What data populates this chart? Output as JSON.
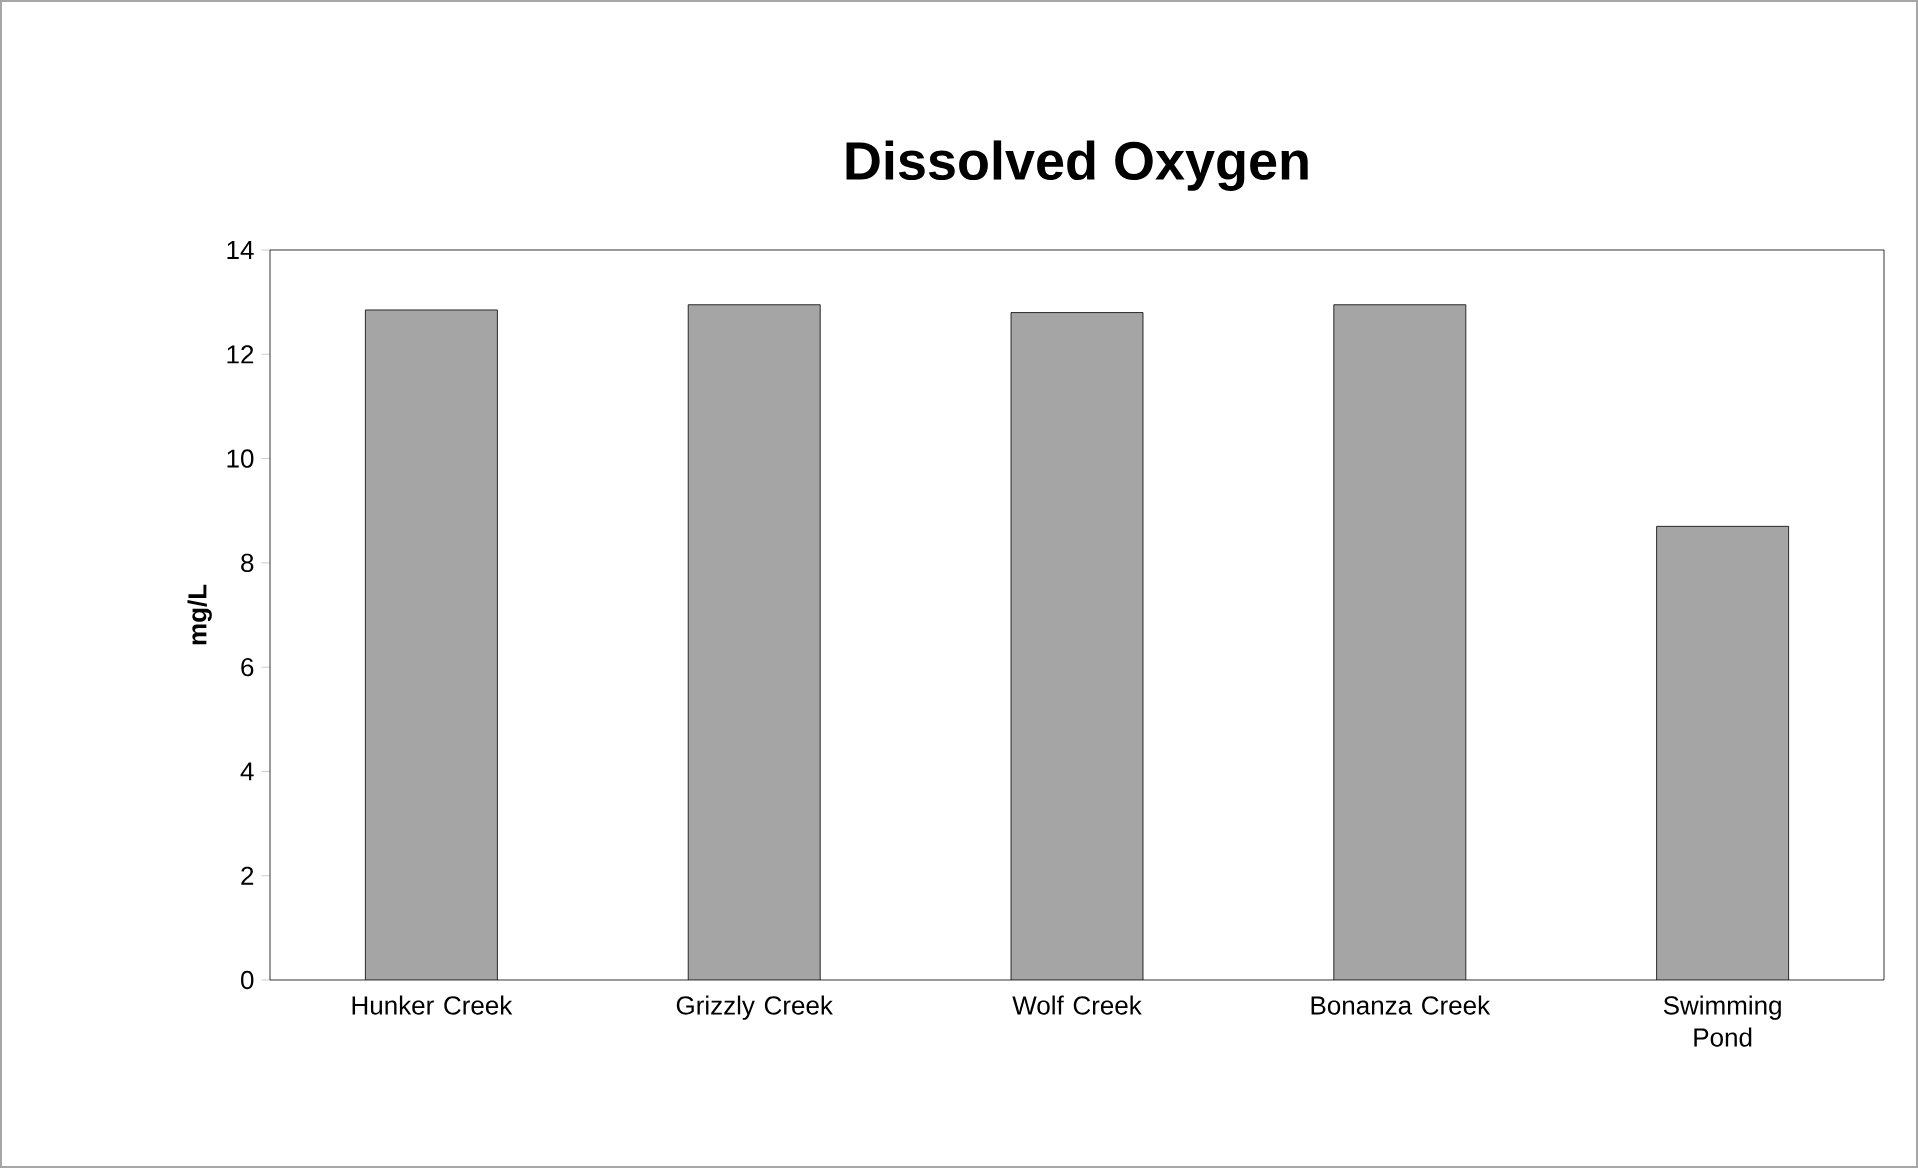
{
  "chart_data": {
    "type": "bar",
    "title": "Dissolved Oxygen",
    "ylabel": "mg/L",
    "categories": [
      "Hunker Creek",
      "Grizzly Creek",
      "Wolf Creek",
      "Bonanza Creek",
      "Swimming Pond"
    ],
    "values": [
      12.85,
      12.95,
      12.8,
      12.95,
      8.7
    ],
    "color": "#a5a5a5",
    "ylim": [
      0,
      14
    ],
    "yticks": [
      0,
      2,
      4,
      6,
      8,
      10,
      12,
      14
    ]
  }
}
